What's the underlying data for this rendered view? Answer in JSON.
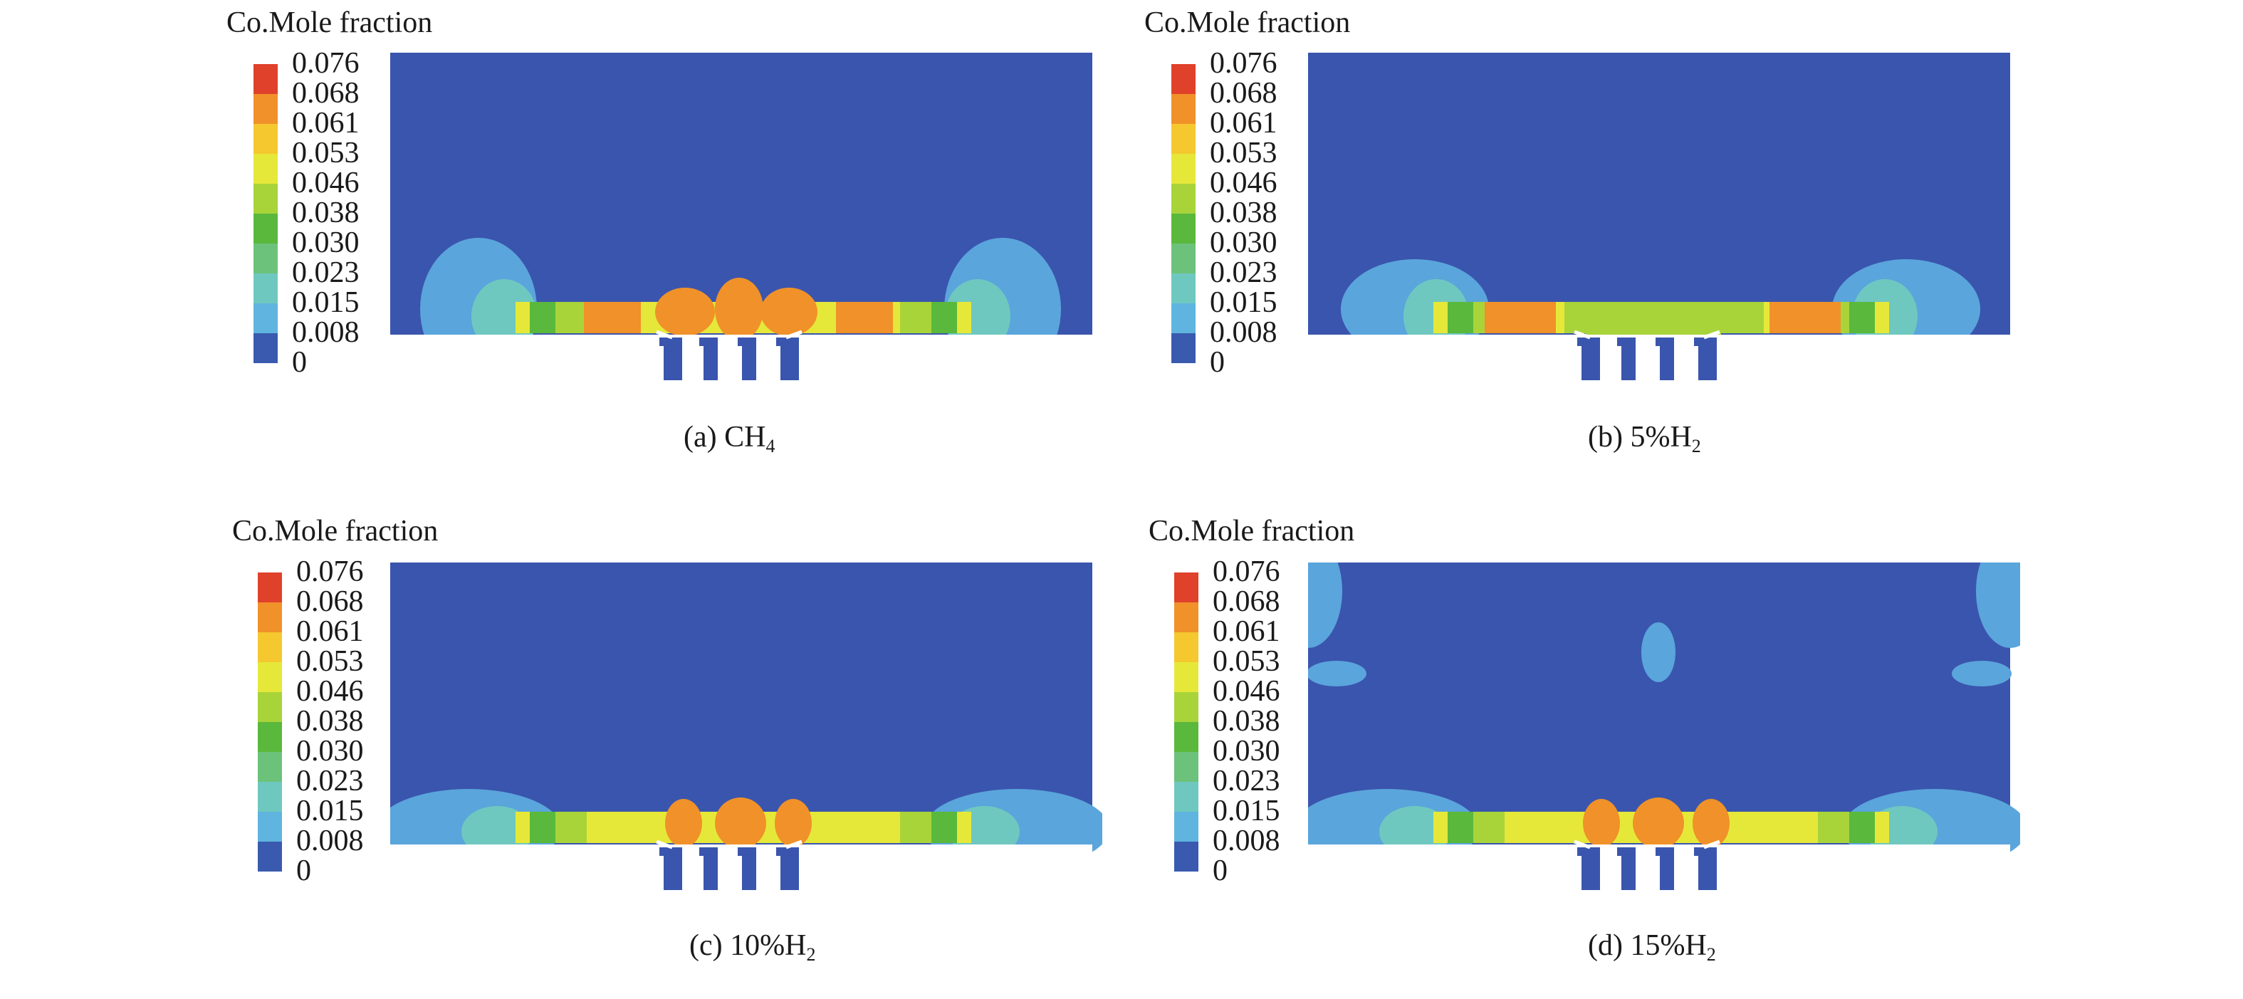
{
  "colorbar": {
    "title": "Co.Mole fraction",
    "ticks": [
      "0.076",
      "0.068",
      "0.061",
      "0.053",
      "0.046",
      "0.038",
      "0.030",
      "0.023",
      "0.015",
      "0.008",
      "0"
    ],
    "colors": [
      "#e0412b",
      "#f0912a",
      "#f5c82f",
      "#e6e839",
      "#a8d43a",
      "#5ab83c",
      "#6cc27a",
      "#6fc8c0",
      "#5fb5df",
      "#3a5aaf"
    ]
  },
  "panels": [
    {
      "caption_pre": "(a) CH",
      "caption_sub": "4",
      "case": "ch4"
    },
    {
      "caption_pre": "(b) 5%H",
      "caption_sub": "2",
      "case": "h2_5"
    },
    {
      "caption_pre": "(c) 10%H",
      "caption_sub": "2",
      "case": "h2_10"
    },
    {
      "caption_pre": "(d) 15%H",
      "caption_sub": "2",
      "case": "h2_15"
    }
  ],
  "palette": {
    "background_field": "#3a55ad",
    "light_blue": "#5aa5dc",
    "cyan": "#6fc8c0",
    "green": "#5ab83c",
    "yellow_green": "#a8d43a",
    "yellow": "#e6e839",
    "orange": "#f0912a",
    "white": "#ffffff"
  }
}
